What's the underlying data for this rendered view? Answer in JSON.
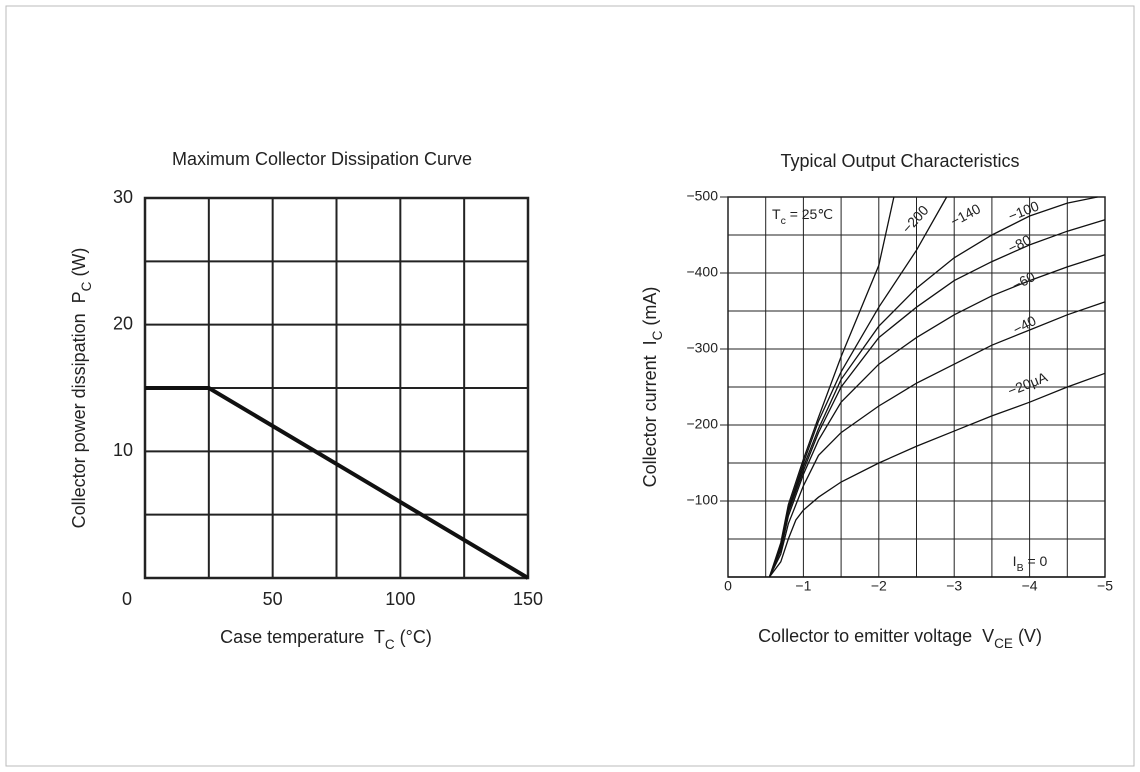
{
  "chart_data": [
    {
      "type": "line",
      "title": "Maximum Collector Dissipation Curve",
      "xlabel": [
        "Case temperature  T",
        "C",
        " (°C)"
      ],
      "ylabel": [
        "Collector power dissipation  P",
        "C",
        " (W)"
      ],
      "xlim": [
        0,
        150
      ],
      "ylim": [
        0,
        30
      ],
      "xticks": [
        0,
        50,
        100,
        150
      ],
      "yticks": [
        10,
        20,
        30
      ],
      "xminor": [
        25,
        75,
        125
      ],
      "yminor": [
        5,
        15,
        25
      ],
      "grid": true,
      "series": [
        {
          "color": "#111111",
          "x": [
            0,
            25,
            150
          ],
          "values": [
            15,
            15,
            0
          ]
        }
      ]
    },
    {
      "type": "line",
      "title": "Typical Output Characteristics",
      "xlabel": [
        "Collector to emitter voltage  V",
        "CE",
        " (V)"
      ],
      "ylabel": [
        "Collector current  I",
        "C",
        " (mA)"
      ],
      "annotation": [
        "T",
        "c",
        " = 25℃"
      ],
      "xlim": [
        0,
        -5
      ],
      "ylim": [
        0,
        -500
      ],
      "xticks": [
        0,
        {
          "value": -1,
          "label": "−1"
        },
        {
          "value": -2,
          "label": "−2"
        },
        {
          "value": -3,
          "label": "−3"
        },
        {
          "value": -4,
          "label": "−4"
        },
        {
          "value": -5,
          "label": "−5"
        }
      ],
      "yticks": [
        {
          "value": -100,
          "label": "−100"
        },
        {
          "value": -200,
          "label": "−200"
        },
        {
          "value": -300,
          "label": "−300"
        },
        {
          "value": -400,
          "label": "−400"
        },
        {
          "value": -500,
          "label": "−500"
        }
      ],
      "xminor": [
        -0.5,
        -1.5,
        -2.5,
        -3.5,
        -4.5
      ],
      "yminor": [
        -50,
        -150,
        -250,
        -350,
        -450
      ],
      "grid": true,
      "series": [
        {
          "name": [
            "I",
            "B",
            " = 0"
          ],
          "color": "#111111",
          "x": [
            0,
            -5
          ],
          "values": [
            0,
            0
          ]
        },
        {
          "name": "−20μA",
          "color": "#111111",
          "x": [
            -0.55,
            -0.7,
            -0.8,
            -0.9,
            -1,
            -1.2,
            -1.5,
            -2,
            -2.5,
            -3,
            -3.5,
            -4,
            -4.5,
            -5
          ],
          "values": [
            0,
            -20,
            -50,
            -75,
            -88,
            -105,
            -125,
            -150,
            -172,
            -192,
            -212,
            -230,
            -250,
            -268
          ]
        },
        {
          "name": "−40",
          "color": "#111111",
          "x": [
            -0.55,
            -0.7,
            -0.8,
            -1,
            -1.2,
            -1.5,
            -2,
            -2.5,
            -3,
            -3.5,
            -4,
            -4.5,
            -5
          ],
          "values": [
            0,
            -30,
            -70,
            -120,
            -160,
            -190,
            -225,
            -255,
            -280,
            -305,
            -325,
            -345,
            -362
          ]
        },
        {
          "name": "−60",
          "color": "#111111",
          "x": [
            -0.55,
            -0.7,
            -0.8,
            -1,
            -1.2,
            -1.5,
            -2,
            -2.5,
            -3,
            -3.5,
            -4,
            -4.5,
            -5
          ],
          "values": [
            0,
            -35,
            -80,
            -135,
            -180,
            -230,
            -280,
            -315,
            -345,
            -370,
            -390,
            -408,
            -424
          ]
        },
        {
          "name": "−80",
          "color": "#111111",
          "x": [
            -0.55,
            -0.7,
            -0.8,
            -1,
            -1.2,
            -1.5,
            -2,
            -2.5,
            -3,
            -3.5,
            -4,
            -4.5,
            -5
          ],
          "values": [
            0,
            -38,
            -85,
            -140,
            -190,
            -250,
            -315,
            -355,
            -390,
            -415,
            -437,
            -455,
            -470
          ]
        },
        {
          "name": "−100",
          "color": "#111111",
          "x": [
            -0.55,
            -0.7,
            -0.8,
            -1,
            -1.2,
            -1.5,
            -2,
            -2.5,
            -3,
            -3.5,
            -4,
            -4.5,
            -4.9
          ],
          "values": [
            0,
            -40,
            -88,
            -145,
            -195,
            -260,
            -330,
            -380,
            -420,
            -450,
            -475,
            -492,
            -500
          ]
        },
        {
          "name": "−140",
          "color": "#111111",
          "x": [
            -0.55,
            -0.7,
            -0.8,
            -1,
            -1.2,
            -1.5,
            -2,
            -2.5,
            -2.9
          ],
          "values": [
            0,
            -42,
            -90,
            -150,
            -205,
            -270,
            -355,
            -430,
            -500
          ]
        },
        {
          "name": "−200",
          "color": "#111111",
          "x": [
            -0.55,
            -0.7,
            -0.8,
            -1,
            -1.2,
            -1.5,
            -2,
            -2.2
          ],
          "values": [
            0,
            -45,
            -95,
            -155,
            -210,
            -290,
            -410,
            -500
          ]
        }
      ]
    }
  ]
}
